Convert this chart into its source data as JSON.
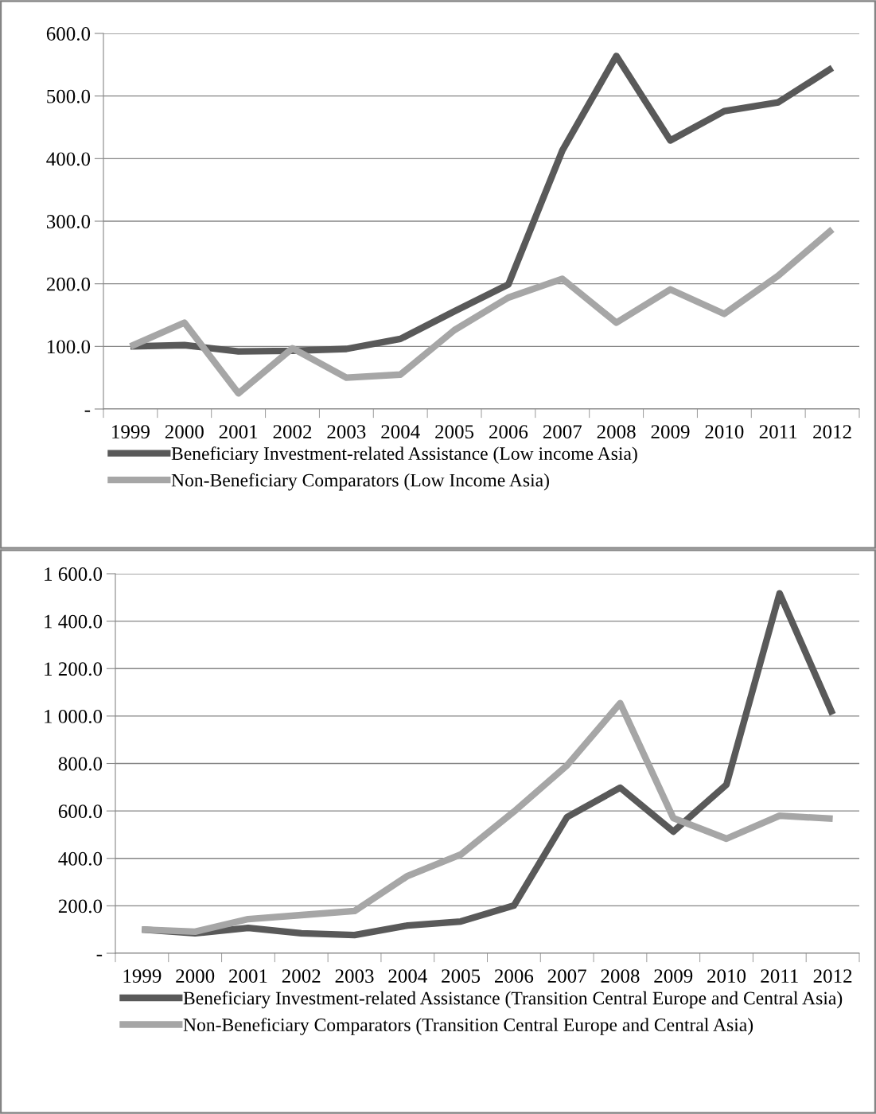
{
  "chart_data": [
    {
      "type": "line",
      "categories": [
        "1999",
        "2000",
        "2001",
        "2002",
        "2003",
        "2004",
        "2005",
        "2006",
        "2007",
        "2008",
        "2009",
        "2010",
        "2011",
        "2012"
      ],
      "series": [
        {
          "name": "Beneficiary Investment-related Assistance (Low income Asia)",
          "color": "#595959",
          "values": [
            100,
            102,
            92,
            93,
            96,
            112,
            156,
            199,
            413,
            564,
            429,
            476,
            490,
            545
          ]
        },
        {
          "name": "Non-Beneficiary Comparators (Low Income Asia)",
          "color": "#a6a6a6",
          "values": [
            100,
            138,
            25,
            97,
            50,
            55,
            126,
            178,
            208,
            138,
            191,
            152,
            213,
            287
          ]
        }
      ],
      "ylim": [
        0,
        600
      ],
      "yticks": [
        {
          "value": 0,
          "label": "-"
        },
        {
          "value": 100,
          "label": "100.0"
        },
        {
          "value": 200,
          "label": "200.0"
        },
        {
          "value": 300,
          "label": "300.0"
        },
        {
          "value": 400,
          "label": "400.0"
        },
        {
          "value": 500,
          "label": "500.0"
        },
        {
          "value": 600,
          "label": "600.0"
        }
      ],
      "grid": "y",
      "legend": "bottom",
      "marker": "none",
      "line_style": "solid"
    },
    {
      "type": "line",
      "categories": [
        "1999",
        "2000",
        "2001",
        "2002",
        "2003",
        "2004",
        "2005",
        "2006",
        "2007",
        "2008",
        "2009",
        "2010",
        "2011",
        "2012"
      ],
      "series": [
        {
          "name": "Beneficiary Investment-related Assistance (Transition Central Europe and Central Asia)",
          "color": "#595959",
          "values": [
            100,
            84,
            107,
            84,
            77,
            117,
            134,
            201,
            574,
            698,
            513,
            711,
            1517,
            1007
          ]
        },
        {
          "name": "Non-Beneficiary Comparators (Transition Central Europe and Central Asia)",
          "color": "#a6a6a6",
          "values": [
            100,
            91,
            144,
            161,
            178,
            326,
            416,
            597,
            792,
            1054,
            570,
            483,
            580,
            567
          ]
        }
      ],
      "ylim": [
        0,
        1600
      ],
      "yticks": [
        {
          "value": 0,
          "label": "-"
        },
        {
          "value": 200,
          "label": "200.0"
        },
        {
          "value": 400,
          "label": "400.0"
        },
        {
          "value": 600,
          "label": "600.0"
        },
        {
          "value": 800,
          "label": "800.0"
        },
        {
          "value": 1000,
          "label": "1 000.0"
        },
        {
          "value": 1200,
          "label": "1 200.0"
        },
        {
          "value": 1400,
          "label": "1 400.0"
        },
        {
          "value": 1600,
          "label": "1 600.0"
        }
      ],
      "grid": "y",
      "legend": "bottom",
      "marker": "none",
      "line_style": "solid"
    }
  ]
}
